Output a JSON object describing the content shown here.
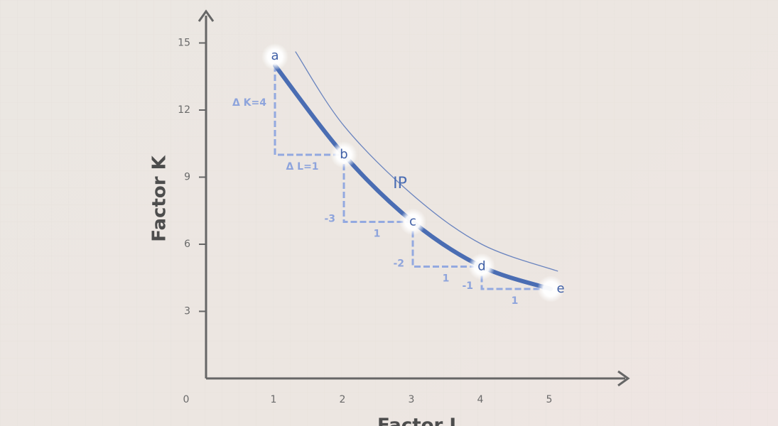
{
  "chart_data": {
    "type": "line",
    "x_label": "Factor L",
    "y_label": "Factor K",
    "xlim": [
      0,
      6.1
    ],
    "ylim": [
      0,
      16.3
    ],
    "xticks": [
      0,
      1,
      2,
      3,
      4,
      5
    ],
    "yticks": [
      3,
      6,
      9,
      12,
      15
    ],
    "curve_label": "IP",
    "series": [
      {
        "color": "#4a6db3",
        "x": [
          1,
          2,
          3,
          4,
          5
        ],
        "values": [
          14,
          10,
          7,
          5,
          4
        ],
        "point_labels": [
          "a",
          "b",
          "c",
          "d",
          "e"
        ]
      },
      {
        "color": "#6a84bf",
        "x": [
          1.3,
          2,
          3,
          4,
          5.1
        ],
        "values": [
          14.6,
          11.3,
          8.2,
          6.0,
          4.8
        ]
      }
    ],
    "step_color": "#93a9e0",
    "step_labels": [
      {
        "dk": "Δ K=4",
        "dl": "Δ L=1"
      },
      {
        "dk": "-3",
        "dl": "1"
      },
      {
        "dk": "-2",
        "dl": "1"
      },
      {
        "dk": "-1",
        "dl": "1"
      }
    ]
  }
}
